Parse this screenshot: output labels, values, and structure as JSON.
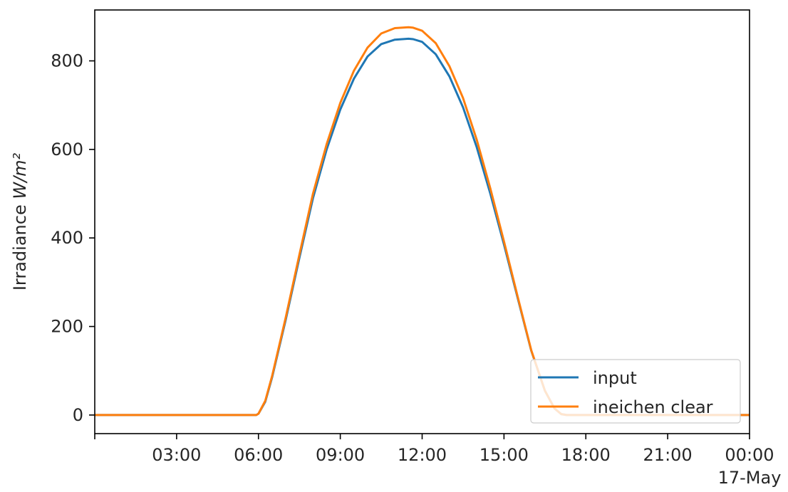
{
  "chart_data": {
    "type": "line",
    "title": "",
    "xlabel": "",
    "ylabel": "Irradiance",
    "ylabel_unit": "W/m²",
    "x_unit": "hours since 00:00 (16 May)",
    "xlim": [
      0,
      24
    ],
    "ylim": [
      -42,
      915
    ],
    "x_ticks": [
      {
        "x": 0,
        "label": ""
      },
      {
        "x": 3,
        "label": "03:00"
      },
      {
        "x": 6,
        "label": "06:00"
      },
      {
        "x": 9,
        "label": "09:00"
      },
      {
        "x": 12,
        "label": "12:00"
      },
      {
        "x": 15,
        "label": "15:00"
      },
      {
        "x": 18,
        "label": "18:00"
      },
      {
        "x": 21,
        "label": "21:00"
      },
      {
        "x": 24,
        "label": "00:00",
        "sublabel": "17-May"
      }
    ],
    "y_ticks": [
      0,
      200,
      400,
      600,
      800
    ],
    "legend_position": "lower-right",
    "grid": false,
    "series": [
      {
        "name": "input",
        "color": "#1f77b4",
        "x": [
          0,
          5.92,
          6.0,
          6.25,
          6.5,
          7.0,
          7.5,
          8.0,
          8.5,
          9.0,
          9.5,
          10.0,
          10.5,
          11.0,
          11.5,
          11.67,
          12.0,
          12.5,
          13.0,
          13.5,
          14.0,
          14.5,
          15.0,
          15.5,
          16.0,
          16.5,
          16.85,
          17.1,
          17.3,
          24
        ],
        "y": [
          0,
          0,
          3,
          30,
          85,
          215,
          355,
          490,
          600,
          690,
          760,
          810,
          838,
          848,
          850,
          849,
          843,
          815,
          765,
          695,
          605,
          500,
          385,
          265,
          145,
          55,
          15,
          2,
          0,
          0
        ]
      },
      {
        "name": "ineichen clear",
        "color": "#ff7f0e",
        "x": [
          0,
          5.92,
          6.0,
          6.25,
          6.5,
          7.0,
          7.5,
          8.0,
          8.5,
          9.0,
          9.5,
          10.0,
          10.5,
          11.0,
          11.5,
          11.67,
          12.0,
          12.5,
          13.0,
          13.5,
          14.0,
          14.5,
          15.0,
          15.5,
          16.0,
          16.5,
          16.85,
          17.1,
          17.3,
          24
        ],
        "y": [
          0,
          0,
          3,
          32,
          88,
          220,
          362,
          500,
          612,
          705,
          778,
          830,
          862,
          874,
          876,
          875,
          868,
          840,
          788,
          716,
          622,
          512,
          392,
          268,
          146,
          55,
          15,
          2,
          0,
          0
        ]
      }
    ]
  }
}
